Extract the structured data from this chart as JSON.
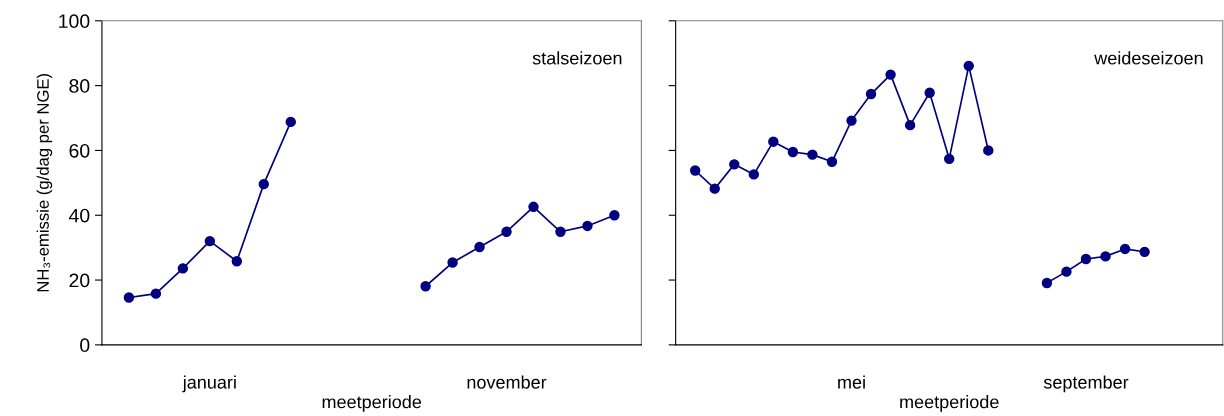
{
  "chart_data": [
    {
      "type": "line",
      "ylabel": "NH₃-emissie (g/dag per NGE)",
      "xlabel": "meetperiode",
      "categories": [
        null,
        null,
        null,
        null,
        "januari",
        null,
        null,
        null,
        null,
        null,
        null,
        null,
        null,
        null,
        null,
        "november",
        null,
        null,
        null,
        null,
        null
      ],
      "ylim": [
        0,
        100
      ],
      "yticks": [
        0,
        20,
        40,
        60,
        80,
        100
      ],
      "marker": "circle",
      "line_style": "solid",
      "series": [
        {
          "color": "#000080",
          "values": [
            null,
            14.6,
            15.8,
            23.6,
            32.0,
            25.8,
            49.6,
            68.8,
            null,
            null,
            null,
            null,
            null,
            null,
            null,
            null,
            null,
            null,
            null,
            null,
            null
          ]
        },
        {
          "color": "#000080",
          "values": [
            null,
            null,
            null,
            null,
            null,
            null,
            null,
            null,
            null,
            null,
            null,
            null,
            18.1,
            25.4,
            30.2,
            34.9,
            42.6,
            34.9,
            36.7,
            40.0,
            null
          ]
        }
      ],
      "annotations": [
        "stalseizoen"
      ]
    },
    {
      "type": "line",
      "xlabel": "meetperiode",
      "categories": [
        null,
        null,
        null,
        null,
        null,
        null,
        null,
        null,
        null,
        "mei",
        null,
        null,
        null,
        null,
        null,
        null,
        null,
        null,
        null,
        null,
        null,
        "september",
        null,
        null,
        null,
        null,
        null,
        null,
        null
      ],
      "ylim": [
        0,
        100
      ],
      "yticks": [
        {
          "value": 0,
          "label": null
        },
        {
          "value": 20,
          "label": null
        },
        {
          "value": 40,
          "label": null
        },
        {
          "value": 60,
          "label": null
        },
        {
          "value": 80,
          "label": null
        },
        {
          "value": 100,
          "label": null
        }
      ],
      "tick_labels": "x",
      "marker": "circle",
      "line_style": "solid",
      "series": [
        {
          "color": "#000080",
          "values": [
            null,
            53.8,
            48.2,
            55.7,
            52.6,
            62.7,
            59.5,
            58.7,
            56.5,
            69.2,
            77.4,
            83.4,
            67.8,
            77.8,
            57.4,
            86.1,
            60.0,
            null,
            null,
            null,
            null,
            null,
            null,
            null,
            null,
            null,
            null,
            null,
            null
          ]
        },
        {
          "color": "#000080",
          "values": [
            null,
            null,
            null,
            null,
            null,
            null,
            null,
            null,
            null,
            null,
            null,
            null,
            null,
            null,
            null,
            null,
            null,
            null,
            null,
            19.1,
            22.6,
            26.5,
            27.3,
            29.6,
            28.7,
            null,
            null,
            null,
            null
          ]
        }
      ],
      "annotations": [
        "weideseizoen"
      ]
    }
  ]
}
